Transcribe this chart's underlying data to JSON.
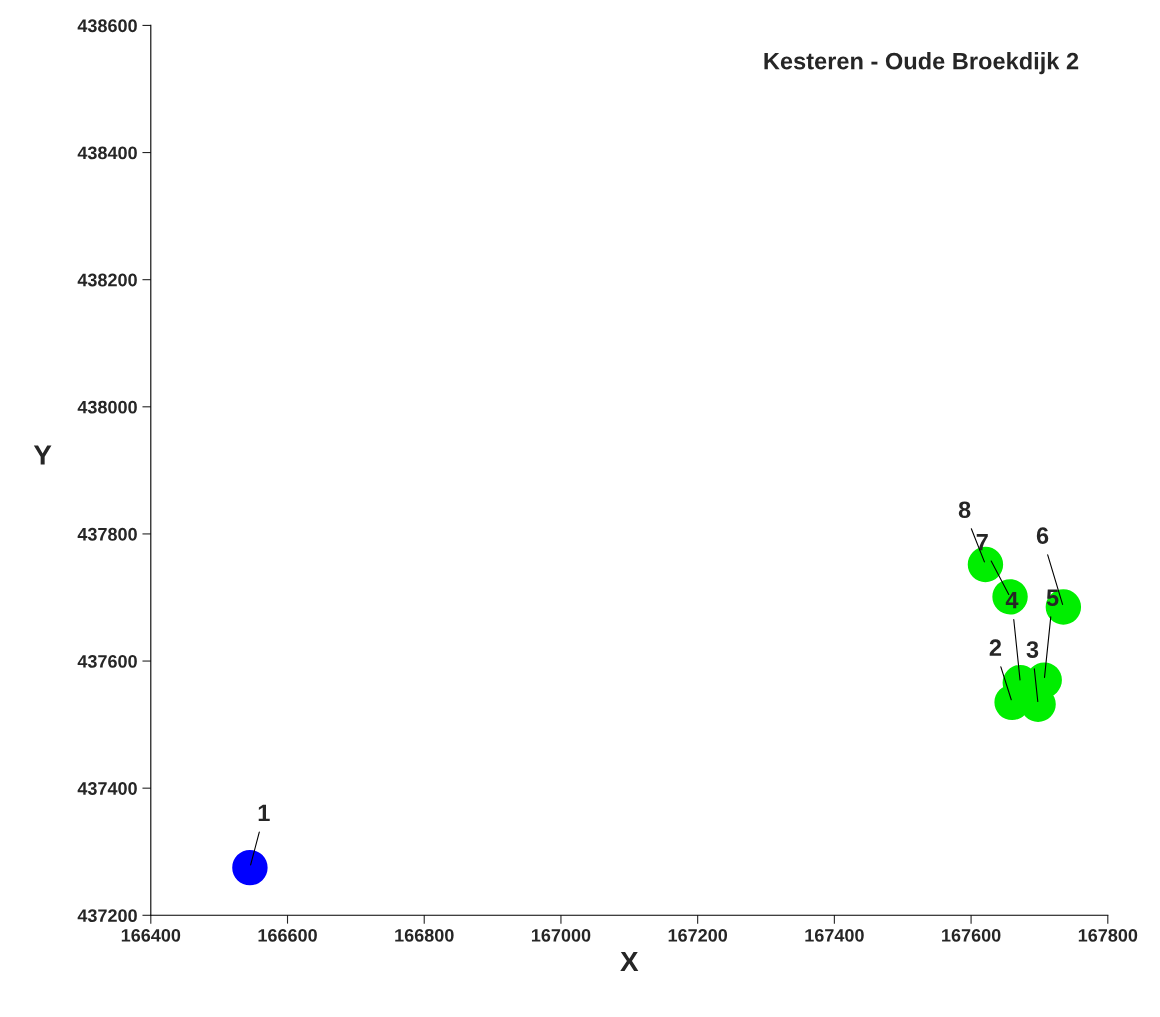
{
  "chart_data": {
    "type": "scatter",
    "title": "Kesteren - Oude Broekdijk 2",
    "xlabel": "X",
    "ylabel": "Y",
    "x": [
      166545,
      167660,
      167698,
      167672,
      167707,
      167735,
      167657,
      167621
    ],
    "values": [
      437275,
      437535,
      437532,
      437566,
      437570,
      437685,
      437701,
      437752
    ],
    "colors": [
      "#0000ff",
      "#00ee00",
      "#00ee00",
      "#00ee00",
      "#00ee00",
      "#00ee00",
      "#00ee00",
      "#00ee00"
    ],
    "annotations": [
      {
        "text": "1",
        "x": 166545,
        "y": 437275
      },
      {
        "text": "2",
        "x": 167660,
        "y": 437535
      },
      {
        "text": "3",
        "x": 167698,
        "y": 437532
      },
      {
        "text": "4",
        "x": 167672,
        "y": 437566
      },
      {
        "text": "5",
        "x": 167707,
        "y": 437570
      },
      {
        "text": "6",
        "x": 167735,
        "y": 437685
      },
      {
        "text": "7",
        "x": 167657,
        "y": 437701
      },
      {
        "text": "8",
        "x": 167621,
        "y": 437752
      }
    ],
    "xlim": [
      166400,
      167800
    ],
    "xticks": [
      166400,
      166600,
      166800,
      167000,
      167200,
      167400,
      167600,
      167800
    ],
    "ylim": [
      437200,
      438600
    ],
    "yticks": [
      437200,
      437400,
      437600,
      437800,
      438000,
      438200,
      438400,
      438600
    ],
    "marker": "circle",
    "grid": false,
    "legend": false
  }
}
